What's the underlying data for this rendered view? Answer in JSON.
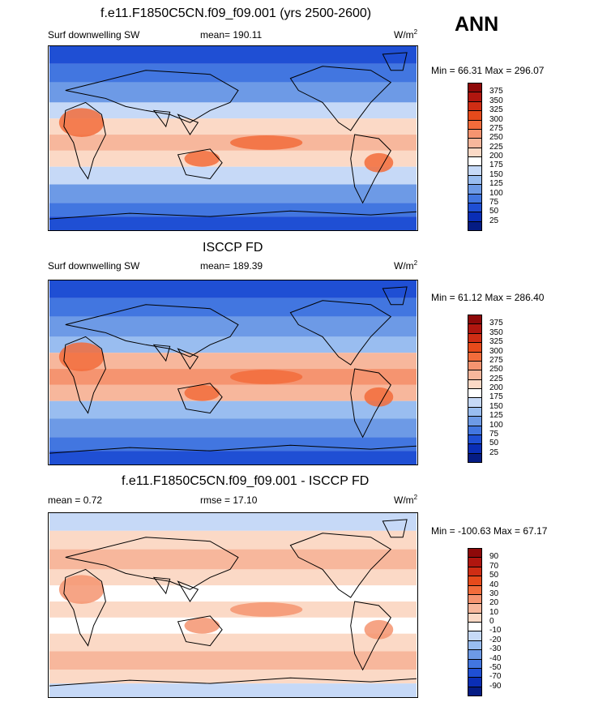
{
  "season": "ANN",
  "panels": [
    {
      "title": "f.e11.F1850C5CN.f09_f09.001 (yrs 2500-2600)",
      "left_label": "Surf downwelling SW",
      "center_label": "mean= 190.11",
      "unit": "W/m",
      "unit_sup": "2",
      "minmax": "Min =  66.31 Max = 296.07",
      "colorbar": {
        "labels": [
          "375",
          "350",
          "325",
          "300",
          "275",
          "250",
          "225",
          "200",
          "175",
          "150",
          "125",
          "100",
          "75",
          "50",
          "25"
        ],
        "colors": [
          "#8e0909",
          "#b0160f",
          "#cf2d14",
          "#e64a1b",
          "#f26c3b",
          "#f59470",
          "#f7b79c",
          "#fbd9c6",
          "#ffffff",
          "#c6d9f7",
          "#99bdf0",
          "#6d9ae6",
          "#4276e0",
          "#1f4fd4",
          "#0a2eb6",
          "#051c84"
        ]
      },
      "map_colors": {
        "tropic": "#f7b79c",
        "subtropic": "#fbd9c6",
        "mid": "#c6d9f7",
        "high": "#6d9ae6",
        "polar": "#4276e0",
        "deep": "#1f4fd4",
        "hot": "#f26c3b"
      }
    },
    {
      "title": "ISCCP FD",
      "left_label": "Surf downwelling SW",
      "center_label": "mean= 189.39",
      "unit": "W/m",
      "unit_sup": "2",
      "minmax": "Min =  61.12 Max = 286.40",
      "colorbar": {
        "labels": [
          "375",
          "350",
          "325",
          "300",
          "275",
          "250",
          "225",
          "200",
          "175",
          "150",
          "125",
          "100",
          "75",
          "50",
          "25"
        ],
        "colors": [
          "#8e0909",
          "#b0160f",
          "#cf2d14",
          "#e64a1b",
          "#f26c3b",
          "#f59470",
          "#f7b79c",
          "#fbd9c6",
          "#ffffff",
          "#c6d9f7",
          "#99bdf0",
          "#6d9ae6",
          "#4276e0",
          "#1f4fd4",
          "#0a2eb6",
          "#051c84"
        ]
      },
      "map_colors": {
        "tropic": "#f59470",
        "subtropic": "#f7b79c",
        "mid": "#99bdf0",
        "high": "#6d9ae6",
        "polar": "#4276e0",
        "deep": "#1f4fd4",
        "hot": "#f26c3b"
      }
    },
    {
      "title": "f.e11.F1850C5CN.f09_f09.001 - ISCCP FD",
      "left_label": "mean =  0.72",
      "center_label": "rmse =  17.10",
      "unit": "W/m",
      "unit_sup": "2",
      "minmax": "Min = -100.63 Max =  67.17",
      "colorbar": {
        "labels": [
          "90",
          "70",
          "50",
          "40",
          "30",
          "20",
          "10",
          "0",
          "-10",
          "-20",
          "-30",
          "-40",
          "-50",
          "-70",
          "-90"
        ],
        "colors": [
          "#8e0909",
          "#b0160f",
          "#cf2d14",
          "#e64a1b",
          "#f26c3b",
          "#f59470",
          "#f7b79c",
          "#fbd9c6",
          "#ffffff",
          "#c6d9f7",
          "#99bdf0",
          "#6d9ae6",
          "#4276e0",
          "#1f4fd4",
          "#0a2eb6",
          "#051c84"
        ]
      },
      "map_colors": {
        "tropic": "#fbd9c6",
        "subtropic": "#ffffff",
        "mid": "#fbd9c6",
        "high": "#f7b79c",
        "polar": "#fbd9c6",
        "deep": "#c6d9f7",
        "hot": "#f59470"
      }
    }
  ]
}
